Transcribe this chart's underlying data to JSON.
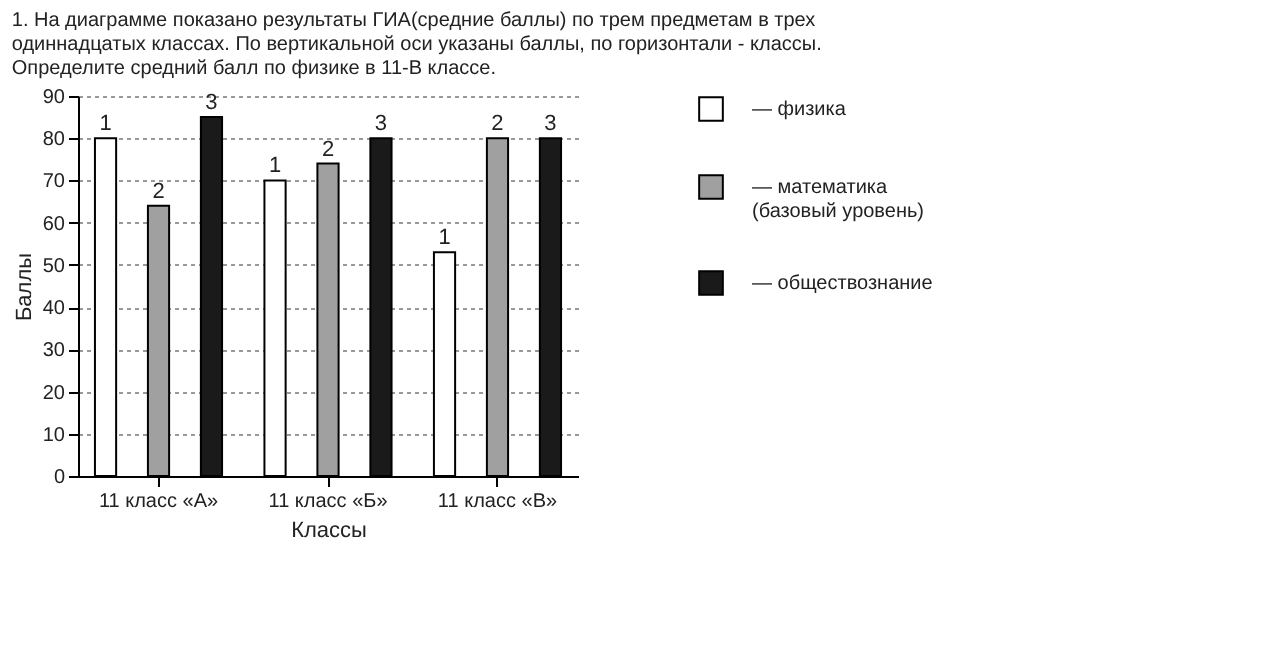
{
  "chart_data": {
    "type": "bar",
    "title": "1. На диаграмме показано результаты ГИА(средние баллы) по трем предметам в трех\nодиннадцатых классах. По вертикальной оси указаны баллы, по горизонтали - классы.\nОпределите средний балл по физике в 11-В классе.",
    "xlabel": "Классы",
    "ylabel": "Баллы",
    "categories": [
      "11 класс «А»",
      "11 класс «Б»",
      "11 класс «В»"
    ],
    "series": [
      {
        "name": "— физика",
        "color": "#ffffff",
        "values": [
          80,
          70,
          53
        ]
      },
      {
        "name": "— математика\n(базовый уровень)",
        "color": "#a0a0a0",
        "values": [
          64,
          74,
          80
        ]
      },
      {
        "name": "— обществознание",
        "color": "#1a1a1a",
        "values": [
          85,
          80,
          80
        ]
      }
    ],
    "annotations": [
      "1",
      "1",
      "1",
      "2",
      "2",
      "2",
      "3",
      "3",
      "3"
    ],
    "ylim": [
      0,
      90
    ],
    "yticks": [
      0,
      10,
      20,
      30,
      40,
      50,
      60,
      70,
      80,
      90
    ],
    "grid": "y",
    "legend": "right"
  }
}
